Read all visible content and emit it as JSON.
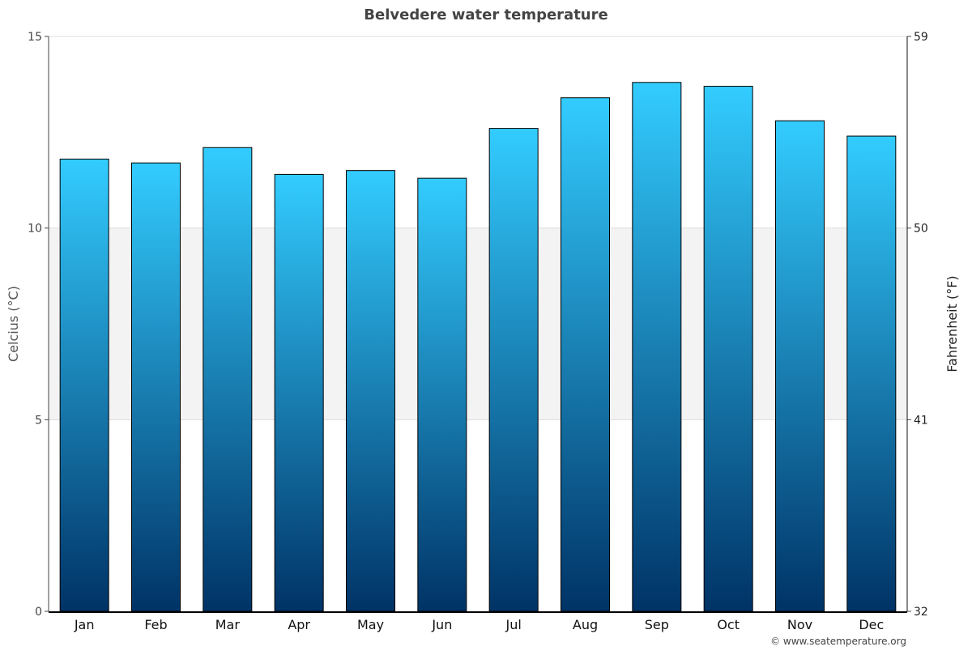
{
  "chart_data": {
    "type": "bar",
    "title": "Belvedere water temperature",
    "ylabel": "Celcius (°C)",
    "y2label": "Fahrenheit (°F)",
    "categories": [
      "Jan",
      "Feb",
      "Mar",
      "Apr",
      "May",
      "Jun",
      "Jul",
      "Aug",
      "Sep",
      "Oct",
      "Nov",
      "Dec"
    ],
    "values": [
      11.8,
      11.7,
      12.1,
      11.4,
      11.5,
      11.3,
      12.6,
      13.4,
      13.8,
      13.7,
      12.8,
      12.4
    ],
    "ylim": [
      0,
      15
    ],
    "yticks": [
      "0",
      "5",
      "10",
      "15"
    ],
    "y2ticks": [
      "32",
      "41",
      "50",
      "59"
    ],
    "shaded_band": [
      5,
      10
    ],
    "colors": {
      "bar_top": "#33ccff",
      "bar_bottom": "#003366",
      "band": "#f3f3f3"
    },
    "credit": "© www.seatemperature.org"
  }
}
